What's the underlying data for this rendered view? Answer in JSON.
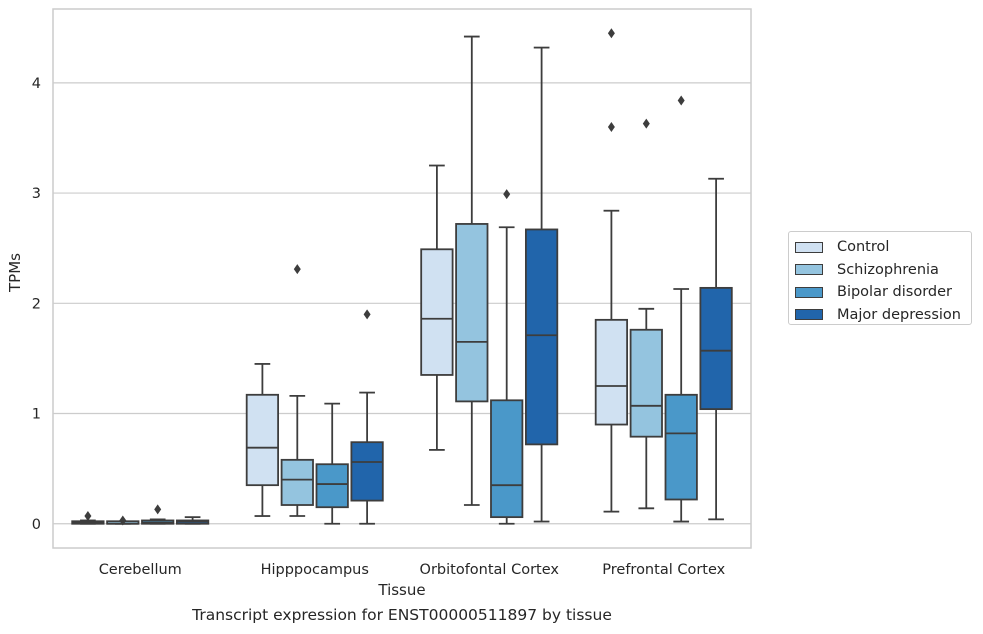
{
  "chart_data": {
    "type": "box",
    "title": "",
    "caption": "Transcript expression for ENST00000511897 by tissue",
    "xlabel": "Tissue",
    "ylabel": "TPMs",
    "ylim": [
      -0.22,
      4.67
    ],
    "yticks": [
      0,
      1,
      2,
      3,
      4
    ],
    "grid": true,
    "legend_position": "right",
    "categories": [
      "Cerebellum",
      "Hipppocampus",
      "Orbitofontal Cortex",
      "Prefrontal Cortex"
    ],
    "series": [
      {
        "name": "Control",
        "color": "#d0e1f2",
        "boxes": [
          {
            "min": 0.0,
            "q1": 0.0,
            "median": 0.01,
            "q3": 0.02,
            "max": 0.03,
            "outliers": [
              0.07
            ]
          },
          {
            "min": 0.07,
            "q1": 0.35,
            "median": 0.69,
            "q3": 1.17,
            "max": 1.45,
            "outliers": []
          },
          {
            "min": 0.67,
            "q1": 1.35,
            "median": 1.86,
            "q3": 2.49,
            "max": 3.25,
            "outliers": []
          },
          {
            "min": 0.11,
            "q1": 0.9,
            "median": 1.25,
            "q3": 1.85,
            "max": 2.84,
            "outliers": [
              3.6,
              4.45
            ]
          }
        ]
      },
      {
        "name": "Schizophrenia",
        "color": "#94c4df",
        "boxes": [
          {
            "min": 0.0,
            "q1": 0.0,
            "median": 0.0,
            "q3": 0.01,
            "max": 0.02,
            "outliers": [
              0.03
            ]
          },
          {
            "min": 0.07,
            "q1": 0.17,
            "median": 0.4,
            "q3": 0.58,
            "max": 1.16,
            "outliers": [
              2.31
            ]
          },
          {
            "min": 0.17,
            "q1": 1.11,
            "median": 1.65,
            "q3": 2.72,
            "max": 4.42,
            "outliers": []
          },
          {
            "min": 0.14,
            "q1": 0.79,
            "median": 1.07,
            "q3": 1.76,
            "max": 1.95,
            "outliers": [
              3.63
            ]
          }
        ]
      },
      {
        "name": "Bipolar disorder",
        "color": "#4a98c9",
        "boxes": [
          {
            "min": 0.0,
            "q1": 0.0,
            "median": 0.01,
            "q3": 0.03,
            "max": 0.04,
            "outliers": [
              0.13
            ]
          },
          {
            "min": 0.0,
            "q1": 0.15,
            "median": 0.36,
            "q3": 0.54,
            "max": 1.09,
            "outliers": []
          },
          {
            "min": 0.0,
            "q1": 0.06,
            "median": 0.35,
            "q3": 1.12,
            "max": 2.69,
            "outliers": [
              2.99
            ]
          },
          {
            "min": 0.02,
            "q1": 0.22,
            "median": 0.82,
            "q3": 1.17,
            "max": 2.13,
            "outliers": [
              3.84
            ]
          }
        ]
      },
      {
        "name": "Major depression",
        "color": "#2165ab",
        "boxes": [
          {
            "min": 0.0,
            "q1": 0.0,
            "median": 0.02,
            "q3": 0.03,
            "max": 0.06,
            "outliers": []
          },
          {
            "min": 0.0,
            "q1": 0.21,
            "median": 0.56,
            "q3": 0.74,
            "max": 1.19,
            "outliers": [
              1.9
            ]
          },
          {
            "min": 0.02,
            "q1": 0.72,
            "median": 1.71,
            "q3": 2.67,
            "max": 4.32,
            "outliers": []
          },
          {
            "min": 0.04,
            "q1": 1.04,
            "median": 1.57,
            "q3": 2.14,
            "max": 3.13,
            "outliers": []
          }
        ]
      }
    ]
  }
}
